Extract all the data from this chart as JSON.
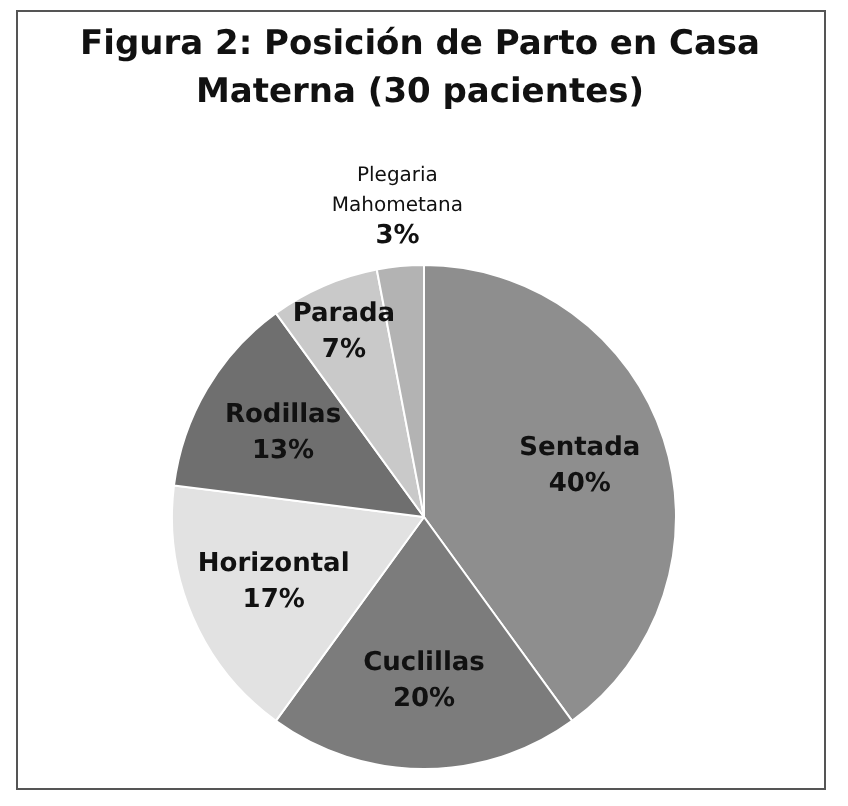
{
  "chart_data": {
    "type": "pie",
    "title": "Figura 2: Posición de Parto en Casa Materna (30 pacientes)",
    "categories": [
      "Sentada",
      "Cuclillas",
      "Horizontal",
      "Rodillas",
      "Parada",
      "Plegaria Mahometana"
    ],
    "values": [
      40,
      20,
      17,
      13,
      7,
      3
    ],
    "value_labels": [
      "40%",
      "20%",
      "17%",
      "13%",
      "7%",
      "3%"
    ],
    "colors": [
      "#8e8e8e",
      "#7c7c7c",
      "#e2e2e2",
      "#6f6f6f",
      "#c9c9c9",
      "#b3b3b3"
    ],
    "legend": false
  }
}
